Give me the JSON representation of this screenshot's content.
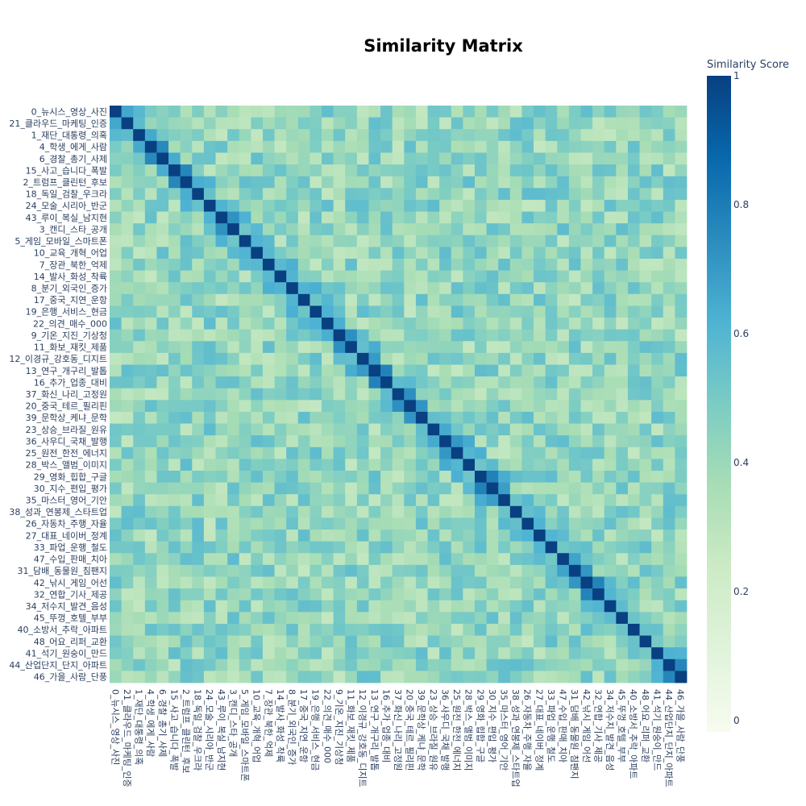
{
  "chart_data": {
    "type": "heatmap",
    "title": "Similarity Matrix",
    "colorbar_title": "Similarity Score",
    "colorbar_ticks": [
      0,
      0.2,
      0.4,
      0.6,
      0.8,
      1
    ],
    "colorbar_tick_labels": [
      "0",
      "0.2",
      "0.4",
      "0.6",
      "0.8",
      "1"
    ],
    "zmin": 0,
    "zmax": 1,
    "colorscale": "GnBu",
    "labels": [
      "0_뉴시스_영상_사진",
      "21_클라우드_마케팅_인증",
      "1_재단_대통령_의혹",
      "4_학생_에게_사람",
      "6_경찰_총기_사제",
      "15_사고_습니다_폭발",
      "2_트럼프_클린턴_후보",
      "18_독일_검찰_우크라",
      "24_모술_시리아_반군",
      "43_루이_복실_남지현",
      "3_캔디_스타_공개",
      "5_게임_모바일_스마트폰",
      "10_교육_개혁_어업",
      "7_장관_북한_억제",
      "14_발사_화성_착륙",
      "8_분기_외국인_증가",
      "17_중국_지연_운항",
      "19_은행_서비스_현금",
      "22_의견_매수_000",
      "9_기온_지진_기상청",
      "11_화보_재킷_제품",
      "12_이경규_강호동_디지트",
      "13_연구_개구리_발톱",
      "16_추가_업종_대비",
      "37_화신_나리_고정원",
      "20_중국_테르_필리핀",
      "39_문학상_케냐_문학",
      "23_상승_브라질_원유",
      "36_사우디_국채_발행",
      "25_원전_한전_에너지",
      "28_박스_앨범_이미지",
      "29_영화_힙합_구글",
      "30_지수_편입_평가",
      "35_마스터_영어_기안",
      "38_성과_연봉제_스타트업",
      "26_자동차_주행_자율",
      "27_대표_네이버_정계",
      "33_파업_운행_철도",
      "47_수입_판매_치아",
      "31_담배_동물원_침팬지",
      "42_낚시_게임_어선",
      "32_연합_기사_제공",
      "34_저수지_발견_음성",
      "45_뚜껑_호텔_부부",
      "40_소방서_추락_아파트",
      "48_어요_리퍼_교환",
      "41_석기_원숭이_만드",
      "44_산업단지_단지_아파트",
      "46_가을_사람_단풍"
    ],
    "colors": {
      "diagonal": "#084081",
      "low": "#f7fcf0",
      "mid": "#7bccc4",
      "high": "#0868ac"
    }
  }
}
